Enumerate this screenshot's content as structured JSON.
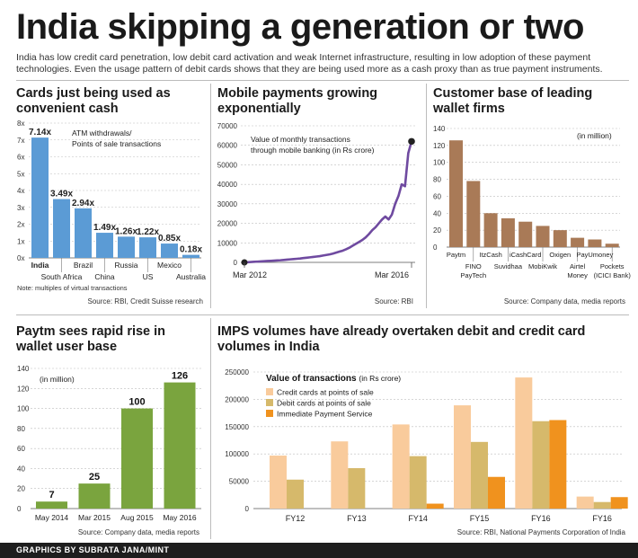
{
  "headline": "India skipping a generation or two",
  "intro": "India has low credit card penetration, low debit card activation and weak Internet infrastructure, resulting in low adoption of these payment technologies. Even the usage pattern of debit cards shows that they are being used more as a cash proxy than as true payment instruments.",
  "footer": "GRAPHICS BY SUBRATA JANA/MINT",
  "colors": {
    "blue": "#5b9bd5",
    "brown": "#a97a57",
    "green": "#7aa43e",
    "credit": "#f9cb9c",
    "debit": "#d6b96b",
    "imps": "#f0921e",
    "purple": "#6f4aa0"
  },
  "chart_data": [
    {
      "id": "cards",
      "type": "bar",
      "title": "Cards just being used as convenient cash",
      "annotation": [
        "ATM withdrawals/",
        "Points of sale transactions"
      ],
      "ylim": [
        0,
        8
      ],
      "yticks": [
        "0x",
        "1x",
        "2x",
        "3x",
        "4x",
        "5x",
        "6x",
        "7x",
        "8x"
      ],
      "categories": [
        "India",
        "South Africa",
        "Brazil",
        "China",
        "Russia",
        "US",
        "Mexico",
        "Australia"
      ],
      "values": [
        7.14,
        3.49,
        2.94,
        1.49,
        1.26,
        1.22,
        0.85,
        0.18
      ],
      "value_labels": [
        "7.14x",
        "3.49x",
        "2.94x",
        "1.49x",
        "1.26x",
        "1.22x",
        "0.85x",
        "0.18x"
      ],
      "note": "Note: multiples of virtual transactions",
      "source": "Source: RBI, Credit Suisse research"
    },
    {
      "id": "mobile",
      "type": "line",
      "title": "Mobile payments growing exponentially",
      "annotation": [
        "Value of monthly transactions",
        "through mobile banking (in Rs crore)"
      ],
      "ylim": [
        0,
        70000
      ],
      "yticks": [
        "0",
        "10000",
        "20000",
        "30000",
        "40000",
        "50000",
        "60000",
        "70000"
      ],
      "x_labels": [
        "Mar 2012",
        "Mar 2016"
      ],
      "values": [
        0,
        100,
        200,
        300,
        400,
        500,
        600,
        700,
        800,
        900,
        1000,
        1100,
        1250,
        1400,
        1550,
        1700,
        1850,
        2000,
        2200,
        2400,
        2600,
        2800,
        3000,
        3200,
        3500,
        3800,
        4100,
        4500,
        5000,
        5500,
        6000,
        6700,
        7500,
        8500,
        9500,
        10500,
        11500,
        12800,
        14500,
        16500,
        18000,
        20000,
        22000,
        23500,
        22000,
        24500,
        30000,
        34000,
        40000,
        39000,
        56000,
        62000
      ],
      "source": "Source: RBI"
    },
    {
      "id": "wallets",
      "type": "bar",
      "title": "Customer base of leading wallet firms",
      "annotation": [
        "(in million)"
      ],
      "ylim": [
        0,
        140
      ],
      "yticks": [
        "0",
        "20",
        "40",
        "60",
        "80",
        "100",
        "120",
        "140"
      ],
      "categories": [
        [
          "Paytm"
        ],
        [
          "FINO",
          "PayTech"
        ],
        [
          "ItzCash"
        ],
        [
          "Suvidhaa"
        ],
        [
          "iCashCard"
        ],
        [
          "MobiKwik"
        ],
        [
          "Oxigen"
        ],
        [
          "Airtel",
          "Money"
        ],
        [
          "PayUmoney"
        ],
        [
          "Pockets",
          "(ICICI Bank)"
        ]
      ],
      "values": [
        126,
        78,
        40,
        34,
        30,
        25,
        20,
        11,
        9,
        4
      ],
      "source": "Source: Company data, media reports"
    },
    {
      "id": "paytm",
      "type": "bar",
      "title": "Paytm sees rapid rise in wallet user base",
      "annotation": [
        "(in million)"
      ],
      "ylim": [
        0,
        140
      ],
      "yticks": [
        "0",
        "20",
        "40",
        "60",
        "80",
        "100",
        "120",
        "140"
      ],
      "categories": [
        "May 2014",
        "Mar 2015",
        "Aug 2015",
        "May 2016"
      ],
      "values": [
        7,
        25,
        100,
        126
      ],
      "value_labels": [
        "7",
        "25",
        "100",
        "126"
      ],
      "source": "Source: Company data, media reports"
    },
    {
      "id": "imps",
      "type": "bar",
      "title": "IMPS volumes have already overtaken debit and credit card volumes in India",
      "legend_title": "Value of transactions",
      "legend_unit": "(in Rs crore)",
      "ylim": [
        0,
        250000
      ],
      "yticks": [
        "0",
        "50000",
        "100000",
        "150000",
        "200000",
        "250000"
      ],
      "categories": [
        "FY12",
        "FY13",
        "FY14",
        "FY15",
        "FY16",
        "FY16"
      ],
      "series": [
        {
          "name": "Credit cards at points of sale",
          "values": [
            97000,
            123000,
            154000,
            189000,
            240000,
            22000
          ]
        },
        {
          "name": "Debit cards at points of sale",
          "values": [
            53000,
            74000,
            96000,
            122000,
            160000,
            12000
          ]
        },
        {
          "name": "Immediate Payment Service",
          "values": [
            0,
            0,
            9000,
            58000,
            162000,
            21000
          ]
        }
      ],
      "source": "Source: RBI, National Payments Corporation of India"
    }
  ]
}
